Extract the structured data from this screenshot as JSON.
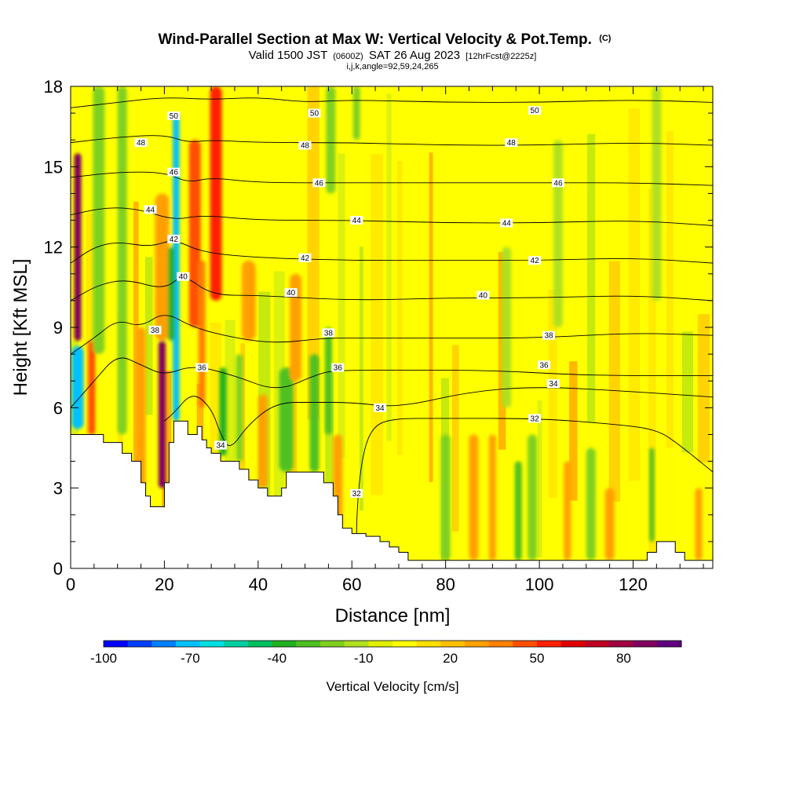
{
  "colors": {
    "background": "#ffffff",
    "terrain": "#ffffff",
    "contour": "#000000",
    "palette": [
      "#0000ff",
      "#0040ff",
      "#0080ff",
      "#00c0ff",
      "#00e0e0",
      "#00d0a0",
      "#00c060",
      "#20b020",
      "#50c020",
      "#80d020",
      "#b0e020",
      "#e0f000",
      "#ffff00",
      "#ffe000",
      "#ffc000",
      "#ffa000",
      "#ff8000",
      "#ff5000",
      "#ff2000",
      "#e00000",
      "#c00020",
      "#a00040",
      "#800060",
      "#600080"
    ],
    "bands": [
      "#ffff00",
      "#b0e020",
      "#80d020",
      "#ffd000",
      "#ffa000",
      "#ff6000",
      "#20b020",
      "#00e0e0",
      "#00c0ff",
      "#c00020"
    ]
  },
  "title": {
    "line1": "Wind-Parallel Section at Max W: Vertical Velocity & Pot.Temp.",
    "line1_mark": "(C)",
    "line2_pre": "Valid 1500 JST",
    "line2_utc": "(0600Z)",
    "line2_date": "SAT 26 Aug 2023",
    "line2_fcst": "[12hrFcst@2225z]",
    "line3": "i,j,k,angle=92,59,24,265"
  },
  "chart_data": {
    "type": "heatmap",
    "xlabel": "Distance [nm]",
    "ylabel": "Height [Kft MSL]",
    "xlim": [
      0,
      137
    ],
    "ylim": [
      0,
      18
    ],
    "x_ticks": [
      0,
      20,
      40,
      60,
      80,
      100,
      120
    ],
    "y_ticks": [
      0,
      3,
      6,
      9,
      12,
      15,
      18
    ],
    "colorbar": {
      "label": "Vertical Velocity [cm/s]",
      "min": -100,
      "max": 100,
      "tick_labels": [
        -100,
        -70,
        -40,
        -10,
        20,
        50,
        80
      ]
    },
    "terrain_profile": [
      [
        0,
        5.0
      ],
      [
        4,
        5.0
      ],
      [
        7,
        4.7
      ],
      [
        9,
        4.7
      ],
      [
        11,
        4.3
      ],
      [
        13,
        4.0
      ],
      [
        15,
        3.2
      ],
      [
        16,
        2.7
      ],
      [
        17,
        2.3
      ],
      [
        19,
        2.3
      ],
      [
        20,
        3.2
      ],
      [
        21,
        4.7
      ],
      [
        22,
        5.5
      ],
      [
        24,
        5.5
      ],
      [
        25,
        5.0
      ],
      [
        27,
        5.3
      ],
      [
        28,
        4.8
      ],
      [
        29,
        4.5
      ],
      [
        30,
        4.3
      ],
      [
        32,
        4.0
      ],
      [
        34,
        4.0
      ],
      [
        36,
        3.7
      ],
      [
        38,
        3.3
      ],
      [
        40,
        3.0
      ],
      [
        42,
        2.7
      ],
      [
        44,
        2.7
      ],
      [
        45,
        3.0
      ],
      [
        46,
        3.6
      ],
      [
        53,
        3.6
      ],
      [
        54,
        3.2
      ],
      [
        56,
        2.7
      ],
      [
        57,
        2.0
      ],
      [
        58,
        1.5
      ],
      [
        60,
        1.3
      ],
      [
        63,
        1.2
      ],
      [
        66,
        1.0
      ],
      [
        68,
        0.8
      ],
      [
        70,
        0.6
      ],
      [
        72,
        0.3
      ],
      [
        121,
        0.3
      ],
      [
        123,
        0.6
      ],
      [
        125,
        1.0
      ],
      [
        127,
        1.0
      ],
      [
        129,
        0.6
      ],
      [
        131,
        0.3
      ],
      [
        137,
        0.3
      ]
    ],
    "plumes": [
      {
        "x": 1.5,
        "w": 1.5,
        "y0": 8.5,
        "y1": 15.5,
        "value": 85
      },
      {
        "x": 1.5,
        "w": 2.5,
        "y0": 5.2,
        "y1": 8.3,
        "value": -75
      },
      {
        "x": 4.5,
        "w": 1.5,
        "y0": 5.0,
        "y1": 8.5,
        "value": 45
      },
      {
        "x": 6.0,
        "w": 2.5,
        "y0": 8.0,
        "y1": 18.0,
        "value": -25
      },
      {
        "x": 11.0,
        "w": 2.0,
        "y0": 5.0,
        "y1": 18.0,
        "value": -25
      },
      {
        "x": 15.0,
        "w": 2.0,
        "y0": 3.0,
        "y1": 9.0,
        "value": 30
      },
      {
        "x": 19.5,
        "w": 1.5,
        "y0": 3.0,
        "y1": 8.5,
        "value": 90
      },
      {
        "x": 19.5,
        "w": 3.0,
        "y0": 8.5,
        "y1": 14.0,
        "value": 25
      },
      {
        "x": 22.5,
        "w": 1.4,
        "y0": 5.5,
        "y1": 17.0,
        "value": -75
      },
      {
        "x": 21.5,
        "w": 1.5,
        "y0": 8.5,
        "y1": 12.0,
        "value": -35
      },
      {
        "x": 26.5,
        "w": 2.5,
        "y0": 9.0,
        "y1": 16.0,
        "value": 45
      },
      {
        "x": 28.0,
        "w": 1.5,
        "y0": 6.0,
        "y1": 11.5,
        "value": 40
      },
      {
        "x": 31.0,
        "w": 2.5,
        "y0": 10.0,
        "y1": 18.0,
        "value": 55
      },
      {
        "x": 32.5,
        "w": 1.5,
        "y0": 4.2,
        "y1": 7.5,
        "value": -40
      },
      {
        "x": 36.0,
        "w": 1.5,
        "y0": 4.0,
        "y1": 8.0,
        "value": -25
      },
      {
        "x": 41.0,
        "w": 2.0,
        "y0": 3.0,
        "y1": 6.5,
        "value": 30
      },
      {
        "x": 38.0,
        "w": 3.0,
        "y0": 8.5,
        "y1": 11.5,
        "value": 25
      },
      {
        "x": 46.0,
        "w": 3.0,
        "y0": 3.6,
        "y1": 7.5,
        "value": -30
      },
      {
        "x": 52.0,
        "w": 2.0,
        "y0": 3.6,
        "y1": 8.0,
        "value": -30
      },
      {
        "x": 55.0,
        "w": 1.5,
        "y0": 5.0,
        "y1": 9.0,
        "value": -30
      },
      {
        "x": 57.0,
        "w": 2.0,
        "y0": 1.5,
        "y1": 5.0,
        "value": 25
      },
      {
        "x": 48.0,
        "w": 2.5,
        "y0": 7.0,
        "y1": 11.0,
        "value": 25
      },
      {
        "x": 55.5,
        "w": 2.0,
        "y0": 14.0,
        "y1": 18.0,
        "value": -20
      },
      {
        "x": 61.0,
        "w": 1.5,
        "y0": 16.0,
        "y1": 18.0,
        "value": -20
      },
      {
        "x": 80.0,
        "w": 2.0,
        "y0": 0.3,
        "y1": 5.0,
        "value": -20
      },
      {
        "x": 86.0,
        "w": 2.0,
        "y0": 0.3,
        "y1": 5.0,
        "value": 30
      },
      {
        "x": 90.0,
        "w": 1.5,
        "y0": 0.3,
        "y1": 5.0,
        "value": 30
      },
      {
        "x": 95.5,
        "w": 1.5,
        "y0": 0.3,
        "y1": 4.0,
        "value": -30
      },
      {
        "x": 98.5,
        "w": 2.0,
        "y0": 0.3,
        "y1": 5.0,
        "value": -25
      },
      {
        "x": 106.0,
        "w": 1.5,
        "y0": 0.3,
        "y1": 4.0,
        "value": 30
      },
      {
        "x": 111.0,
        "w": 2.0,
        "y0": 0.3,
        "y1": 4.5,
        "value": -20
      },
      {
        "x": 115.0,
        "w": 2.0,
        "y0": 0.3,
        "y1": 3.0,
        "value": 25
      },
      {
        "x": 124.0,
        "w": 1.0,
        "y0": 1.0,
        "y1": 4.5,
        "value": -30
      },
      {
        "x": 104.0,
        "w": 2.0,
        "y0": 9.0,
        "y1": 16.0,
        "value": -15
      },
      {
        "x": 125.0,
        "w": 2.0,
        "y0": 10.0,
        "y1": 18.0,
        "value": -15
      },
      {
        "x": 93.0,
        "w": 2.0,
        "y0": 6.0,
        "y1": 12.0,
        "value": -15
      },
      {
        "x": 134.0,
        "w": 1.5,
        "y0": 0.3,
        "y1": 3.0,
        "value": 25
      }
    ],
    "isentropes": [
      {
        "value": 50,
        "points": [
          [
            0,
            17.2
          ],
          [
            10,
            17.4
          ],
          [
            20,
            17.6
          ],
          [
            30,
            17.5
          ],
          [
            40,
            17.6
          ],
          [
            50,
            17.4
          ],
          [
            60,
            17.5
          ],
          [
            80,
            17.4
          ],
          [
            100,
            17.4
          ],
          [
            120,
            17.5
          ],
          [
            137,
            17.4
          ]
        ],
        "labels": [
          [
            22,
            16.9
          ],
          [
            52,
            17.0
          ],
          [
            99,
            17.1
          ]
        ]
      },
      {
        "value": 48,
        "points": [
          [
            0,
            15.9
          ],
          [
            10,
            16.1
          ],
          [
            20,
            16.2
          ],
          [
            25,
            15.9
          ],
          [
            30,
            16.0
          ],
          [
            40,
            15.9
          ],
          [
            60,
            15.9
          ],
          [
            80,
            15.8
          ],
          [
            100,
            15.8
          ],
          [
            120,
            15.9
          ],
          [
            137,
            15.8
          ]
        ],
        "labels": [
          [
            15,
            15.9
          ],
          [
            50,
            15.8
          ],
          [
            94,
            15.9
          ]
        ]
      },
      {
        "value": 46,
        "points": [
          [
            0,
            14.6
          ],
          [
            10,
            14.8
          ],
          [
            20,
            14.8
          ],
          [
            25,
            14.4
          ],
          [
            30,
            14.6
          ],
          [
            40,
            14.4
          ],
          [
            60,
            14.4
          ],
          [
            80,
            14.4
          ],
          [
            100,
            14.4
          ],
          [
            120,
            14.4
          ],
          [
            137,
            14.3
          ]
        ],
        "labels": [
          [
            22,
            14.8
          ],
          [
            53,
            14.4
          ],
          [
            104,
            14.4
          ]
        ]
      },
      {
        "value": 44,
        "points": [
          [
            0,
            13.2
          ],
          [
            8,
            13.5
          ],
          [
            15,
            13.4
          ],
          [
            22,
            13.0
          ],
          [
            28,
            13.2
          ],
          [
            40,
            13.0
          ],
          [
            60,
            13.0
          ],
          [
            80,
            12.9
          ],
          [
            100,
            12.9
          ],
          [
            120,
            13.0
          ],
          [
            137,
            12.8
          ]
        ],
        "labels": [
          [
            17,
            13.4
          ],
          [
            61,
            13.0
          ],
          [
            93,
            12.9
          ]
        ]
      },
      {
        "value": 42,
        "points": [
          [
            0,
            11.4
          ],
          [
            5,
            12.0
          ],
          [
            10,
            12.2
          ],
          [
            17,
            12.0
          ],
          [
            22,
            12.3
          ],
          [
            28,
            11.8
          ],
          [
            40,
            11.6
          ],
          [
            60,
            11.5
          ],
          [
            80,
            11.5
          ],
          [
            100,
            11.5
          ],
          [
            120,
            11.6
          ],
          [
            137,
            11.4
          ]
        ],
        "labels": [
          [
            22,
            12.3
          ],
          [
            50,
            11.6
          ],
          [
            99,
            11.5
          ]
        ]
      },
      {
        "value": 40,
        "points": [
          [
            0,
            10.0
          ],
          [
            6,
            10.6
          ],
          [
            12,
            10.8
          ],
          [
            20,
            10.4
          ],
          [
            24,
            11.0
          ],
          [
            30,
            10.2
          ],
          [
            40,
            10.2
          ],
          [
            60,
            10.0
          ],
          [
            80,
            10.1
          ],
          [
            100,
            10.1
          ],
          [
            120,
            10.2
          ],
          [
            137,
            10.0
          ]
        ],
        "labels": [
          [
            24,
            10.9
          ],
          [
            47,
            10.3
          ],
          [
            88,
            10.2
          ]
        ]
      },
      {
        "value": 38,
        "points": [
          [
            0,
            8.0
          ],
          [
            5,
            8.6
          ],
          [
            10,
            9.3
          ],
          [
            15,
            9.0
          ],
          [
            20,
            9.6
          ],
          [
            26,
            9.0
          ],
          [
            35,
            8.6
          ],
          [
            44,
            8.4
          ],
          [
            54,
            8.6
          ],
          [
            60,
            8.6
          ],
          [
            80,
            8.6
          ],
          [
            100,
            8.6
          ],
          [
            120,
            8.8
          ],
          [
            137,
            8.7
          ]
        ],
        "labels": [
          [
            18,
            8.9
          ],
          [
            55,
            8.8
          ],
          [
            102,
            8.7
          ]
        ]
      },
      {
        "value": 36,
        "points": [
          [
            0,
            6.0
          ],
          [
            5,
            7.0
          ],
          [
            10,
            8.0
          ],
          [
            15,
            7.6
          ],
          [
            20,
            7.2
          ],
          [
            26,
            7.6
          ],
          [
            35,
            7.2
          ],
          [
            44,
            6.6
          ],
          [
            52,
            7.2
          ],
          [
            56,
            7.4
          ],
          [
            70,
            7.4
          ],
          [
            90,
            7.4
          ],
          [
            110,
            7.2
          ],
          [
            137,
            7.2
          ]
        ],
        "labels": [
          [
            28,
            7.5
          ],
          [
            57,
            7.5
          ],
          [
            101,
            7.6
          ]
        ]
      },
      {
        "value": 34,
        "points": [
          [
            20,
            5.5
          ],
          [
            22,
            5.8
          ],
          [
            26,
            6.6
          ],
          [
            30,
            6.0
          ],
          [
            32,
            5.0
          ],
          [
            34,
            4.4
          ],
          [
            38,
            5.4
          ],
          [
            44,
            6.2
          ],
          [
            52,
            6.2
          ],
          [
            60,
            6.2
          ],
          [
            70,
            6.0
          ],
          [
            85,
            6.6
          ],
          [
            100,
            6.8
          ],
          [
            120,
            6.6
          ],
          [
            137,
            6.4
          ]
        ],
        "labels": [
          [
            32,
            4.6
          ],
          [
            66,
            6.0
          ],
          [
            103,
            6.9
          ]
        ]
      },
      {
        "value": 32,
        "points": [
          [
            61,
            0.4
          ],
          [
            61,
            2.0
          ],
          [
            62,
            4.0
          ],
          [
            64,
            5.2
          ],
          [
            68,
            5.6
          ],
          [
            80,
            5.6
          ],
          [
            100,
            5.6
          ],
          [
            115,
            5.4
          ],
          [
            125,
            5.2
          ],
          [
            130,
            4.6
          ],
          [
            137,
            3.6
          ]
        ],
        "labels": [
          [
            61,
            2.8
          ],
          [
            99,
            5.6
          ]
        ]
      }
    ]
  }
}
